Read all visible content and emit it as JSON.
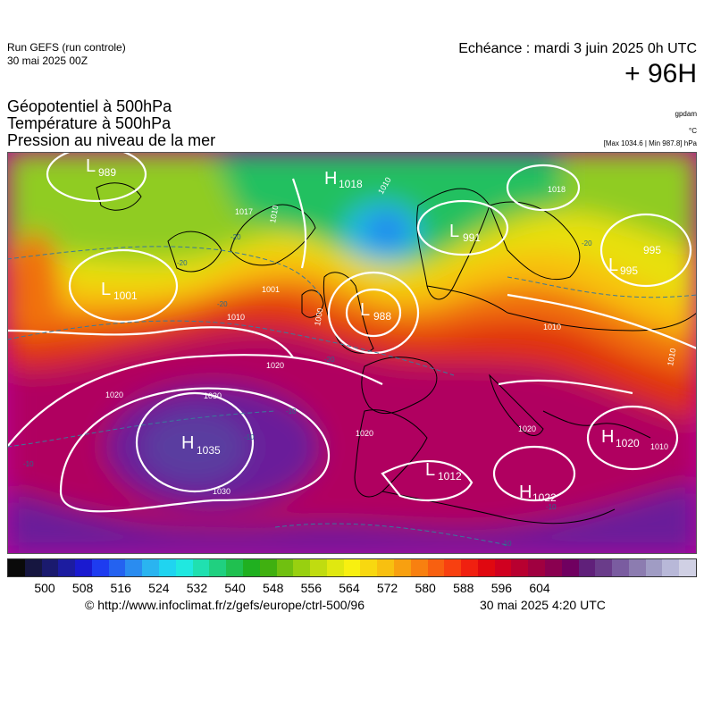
{
  "header": {
    "run_label": "Run GEFS (run controle)",
    "run_date": "30 mai 2025 00Z",
    "valid_time": "Echéance : mardi 3 juin 2025 0h UTC",
    "lead_time": "+ 96H"
  },
  "titles": {
    "line1": "Géopotentiel à 500hPa",
    "line2": "Température à 500hPa",
    "line3": "Pression au niveau de la mer"
  },
  "units": {
    "geopotential": "gpdam",
    "temperature": "°C",
    "pressure_range": "[Max 1034.6 | Min 987.8] hPa"
  },
  "pressure_centers": [
    {
      "type": "L",
      "value": "989"
    },
    {
      "type": "L",
      "value": "1001"
    },
    {
      "type": "H",
      "value": "1018"
    },
    {
      "type": "L",
      "value": "991"
    },
    {
      "type": "L",
      "value": "988"
    },
    {
      "type": "L",
      "value": "995"
    },
    {
      "type": "L",
      "value": "995"
    },
    {
      "type": "H",
      "value": "1035"
    },
    {
      "type": "H",
      "value": "1020"
    },
    {
      "type": "L",
      "value": "1012"
    },
    {
      "type": "H",
      "value": "1022"
    }
  ],
  "isobar_labels": [
    "1010",
    "1010",
    "1000",
    "1001",
    "1010",
    "1020",
    "1020",
    "1030",
    "1030",
    "1020",
    "1020",
    "1010",
    "1010",
    "1018",
    "1010",
    "1017"
  ],
  "temperature_labels": [
    "-20",
    "-20",
    "-20",
    "-20",
    "-10",
    "-10",
    "-10",
    "-10",
    "-10",
    "-20"
  ],
  "colorbar": {
    "ticks": [
      "500",
      "508",
      "516",
      "524",
      "532",
      "540",
      "548",
      "556",
      "564",
      "572",
      "580",
      "588",
      "596",
      "604"
    ],
    "colors": [
      "#0a0a0a",
      "#161640",
      "#1a1a6e",
      "#1c1ca0",
      "#1a1ad0",
      "#1e3cf0",
      "#2462f0",
      "#2a8cf0",
      "#2ab4f0",
      "#20d4f0",
      "#20e8e0",
      "#20e0b0",
      "#20d080",
      "#20c050",
      "#20b020",
      "#40b010",
      "#70c010",
      "#98d010",
      "#c0dc10",
      "#e0e810",
      "#f8f010",
      "#f8d810",
      "#f8c010",
      "#f8a010",
      "#f88010",
      "#f86010",
      "#f84010",
      "#f02010",
      "#e00810",
      "#d00020",
      "#b80030",
      "#a00040",
      "#8a0050",
      "#700060",
      "#60207a",
      "#6a3c8a",
      "#7a5ca0",
      "#8c7cb0",
      "#a09cc4",
      "#b8b8d8",
      "#d0d0e4"
    ]
  },
  "footer": {
    "source": "© http://www.infoclimat.fr/z/gefs/europe/ctrl-500/96",
    "generated": "30 mai 2025  4:20 UTC"
  }
}
